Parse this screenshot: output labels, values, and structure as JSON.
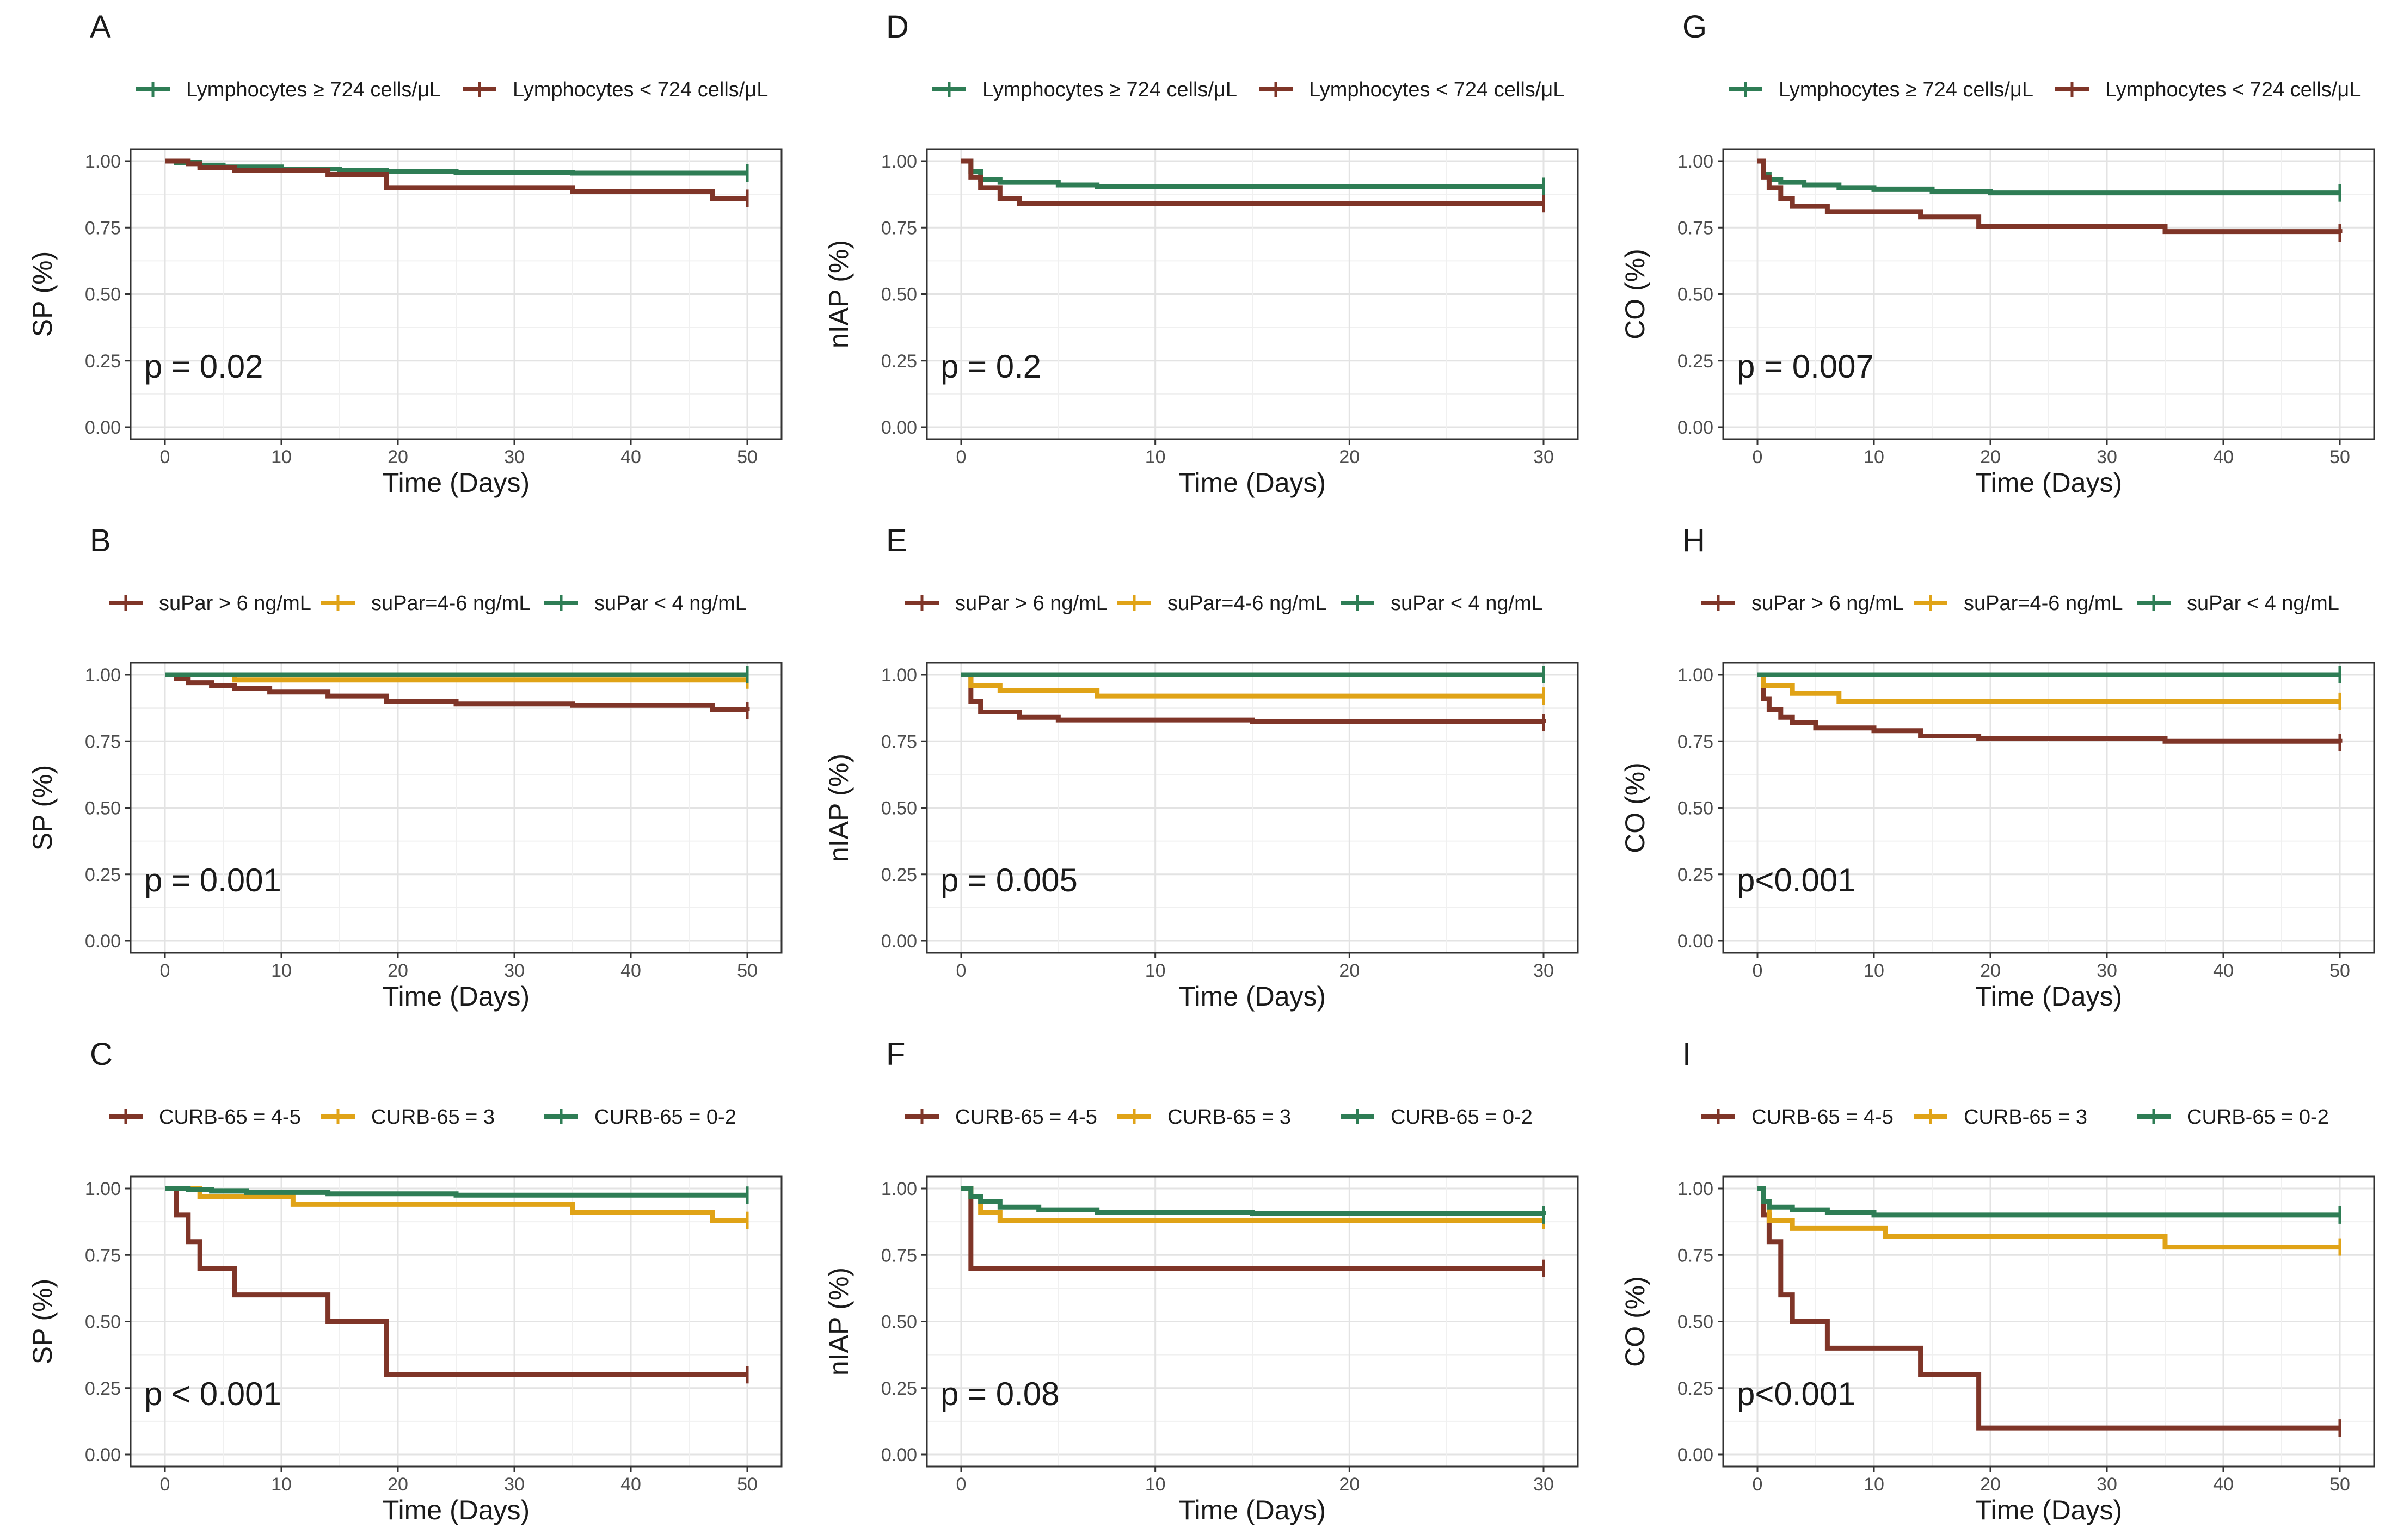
{
  "figure": {
    "colors": {
      "green": "#2e7d55",
      "brown": "#7f3528",
      "gold": "#e0a317"
    }
  },
  "chart_data": [
    {
      "id": "A",
      "type": "line",
      "subtype": "kaplan-meier",
      "xlabel": "Time (Days)",
      "ylabel": "SP (%)",
      "xlim": [
        0,
        50
      ],
      "ylim": [
        0,
        1
      ],
      "xticks": [
        "0",
        "10",
        "20",
        "30",
        "40",
        "50"
      ],
      "yticks": [
        "0.00",
        "0.25",
        "0.50",
        "0.75",
        "1.00"
      ],
      "pvalue": "p = 0.02",
      "legend": [
        {
          "label": "Lymphocytes ≥ 724 cells/μL",
          "color": "#2e7d55"
        },
        {
          "label": "Lymphocytes < 724 cells/μL",
          "color": "#7f3528"
        }
      ],
      "series": [
        {
          "name": "Lymphocytes ≥ 724 cells/μL",
          "color": "#2e7d55",
          "x": [
            0,
            1,
            3,
            5,
            10,
            15,
            19,
            25,
            35,
            50
          ],
          "y": [
            1,
            0.995,
            0.985,
            0.978,
            0.97,
            0.965,
            0.962,
            0.958,
            0.955,
            0.955
          ]
        },
        {
          "name": "Lymphocytes < 724 cells/μL",
          "color": "#7f3528",
          "x": [
            0,
            2,
            3,
            6,
            14,
            19,
            35,
            47,
            50
          ],
          "y": [
            1,
            0.99,
            0.975,
            0.965,
            0.95,
            0.9,
            0.885,
            0.86,
            0.86
          ]
        }
      ]
    },
    {
      "id": "B",
      "type": "line",
      "subtype": "kaplan-meier",
      "xlabel": "Time (Days)",
      "ylabel": "SP (%)",
      "xlim": [
        0,
        50
      ],
      "ylim": [
        0,
        1
      ],
      "xticks": [
        "0",
        "10",
        "20",
        "30",
        "40",
        "50"
      ],
      "yticks": [
        "0.00",
        "0.25",
        "0.50",
        "0.75",
        "1.00"
      ],
      "pvalue": "p = 0.001",
      "legend": [
        {
          "label": "suPar > 6 ng/mL",
          "color": "#7f3528"
        },
        {
          "label": "suPar=4-6 ng/mL",
          "color": "#e0a317"
        },
        {
          "label": "suPar < 4 ng/mL",
          "color": "#2e7d55"
        }
      ],
      "series": [
        {
          "name": "suPar > 6 ng/mL",
          "color": "#7f3528",
          "x": [
            0,
            1,
            2,
            4,
            6,
            9,
            14,
            19,
            25,
            35,
            47,
            50
          ],
          "y": [
            1,
            0.985,
            0.97,
            0.96,
            0.95,
            0.935,
            0.92,
            0.9,
            0.89,
            0.885,
            0.87,
            0.865
          ]
        },
        {
          "name": "suPar=4-6 ng/mL",
          "color": "#e0a317",
          "x": [
            0,
            6,
            50
          ],
          "y": [
            1,
            0.98,
            0.98
          ]
        },
        {
          "name": "suPar < 4 ng/mL",
          "color": "#2e7d55",
          "x": [
            0,
            50
          ],
          "y": [
            1,
            1
          ]
        }
      ]
    },
    {
      "id": "C",
      "type": "line",
      "subtype": "kaplan-meier",
      "xlabel": "Time (Days)",
      "ylabel": "SP (%)",
      "xlim": [
        0,
        50
      ],
      "ylim": [
        0,
        1
      ],
      "xticks": [
        "0",
        "10",
        "20",
        "30",
        "40",
        "50"
      ],
      "yticks": [
        "0.00",
        "0.25",
        "0.50",
        "0.75",
        "1.00"
      ],
      "pvalue": "p < 0.001",
      "legend": [
        {
          "label": "CURB-65 = 4-5",
          "color": "#7f3528"
        },
        {
          "label": "CURB-65 = 3",
          "color": "#e0a317"
        },
        {
          "label": "CURB-65 = 0-2",
          "color": "#2e7d55"
        }
      ],
      "series": [
        {
          "name": "CURB-65 = 4-5",
          "color": "#7f3528",
          "x": [
            0,
            1,
            2,
            3,
            6,
            14,
            19,
            50
          ],
          "y": [
            1,
            0.9,
            0.8,
            0.7,
            0.6,
            0.5,
            0.3,
            0.3
          ]
        },
        {
          "name": "CURB-65 = 3",
          "color": "#e0a317",
          "x": [
            0,
            3,
            11,
            35,
            47,
            50
          ],
          "y": [
            1,
            0.97,
            0.94,
            0.91,
            0.88,
            0.88
          ]
        },
        {
          "name": "CURB-65 = 0-2",
          "color": "#2e7d55",
          "x": [
            0,
            2,
            4,
            7,
            14,
            25,
            50
          ],
          "y": [
            1,
            0.995,
            0.99,
            0.985,
            0.98,
            0.975,
            0.975
          ]
        }
      ]
    },
    {
      "id": "D",
      "type": "line",
      "subtype": "kaplan-meier",
      "xlabel": "Time (Days)",
      "ylabel": "nIAP (%)",
      "xlim": [
        0,
        30
      ],
      "ylim": [
        0,
        1
      ],
      "xticks": [
        "0",
        "10",
        "20",
        "30"
      ],
      "yticks": [
        "0.00",
        "0.25",
        "0.50",
        "0.75",
        "1.00"
      ],
      "pvalue": "p = 0.2",
      "legend": [
        {
          "label": "Lymphocytes ≥ 724 cells/μL",
          "color": "#2e7d55"
        },
        {
          "label": "Lymphocytes < 724 cells/μL",
          "color": "#7f3528"
        }
      ],
      "series": [
        {
          "name": "Lymphocytes ≥ 724 cells/μL",
          "color": "#2e7d55",
          "x": [
            0,
            0.5,
            1,
            2,
            5,
            7,
            30
          ],
          "y": [
            1,
            0.96,
            0.93,
            0.92,
            0.91,
            0.905,
            0.905
          ]
        },
        {
          "name": "Lymphocytes < 724 cells/μL",
          "color": "#7f3528",
          "x": [
            0,
            0.5,
            1,
            2,
            3,
            30
          ],
          "y": [
            1,
            0.94,
            0.9,
            0.86,
            0.84,
            0.84
          ]
        }
      ]
    },
    {
      "id": "E",
      "type": "line",
      "subtype": "kaplan-meier",
      "xlabel": "Time (Days)",
      "ylabel": "nIAP (%)",
      "xlim": [
        0,
        30
      ],
      "ylim": [
        0,
        1
      ],
      "xticks": [
        "0",
        "10",
        "20",
        "30"
      ],
      "yticks": [
        "0.00",
        "0.25",
        "0.50",
        "0.75",
        "1.00"
      ],
      "pvalue": "p = 0.005",
      "legend": [
        {
          "label": "suPar > 6 ng/mL",
          "color": "#7f3528"
        },
        {
          "label": "suPar=4-6 ng/mL",
          "color": "#e0a317"
        },
        {
          "label": "suPar < 4 ng/mL",
          "color": "#2e7d55"
        }
      ],
      "series": [
        {
          "name": "suPar > 6 ng/mL",
          "color": "#7f3528",
          "x": [
            0,
            0.5,
            1,
            3,
            5,
            15,
            30
          ],
          "y": [
            1,
            0.9,
            0.86,
            0.84,
            0.83,
            0.825,
            0.82
          ]
        },
        {
          "name": "suPar=4-6 ng/mL",
          "color": "#e0a317",
          "x": [
            0,
            0.5,
            2,
            7,
            30
          ],
          "y": [
            1,
            0.96,
            0.94,
            0.92,
            0.92
          ]
        },
        {
          "name": "suPar < 4 ng/mL",
          "color": "#2e7d55",
          "x": [
            0,
            30
          ],
          "y": [
            1,
            1
          ]
        }
      ]
    },
    {
      "id": "F",
      "type": "line",
      "subtype": "kaplan-meier",
      "xlabel": "Time (Days)",
      "ylabel": "nIAP (%)",
      "xlim": [
        0,
        30
      ],
      "ylim": [
        0,
        1
      ],
      "xticks": [
        "0",
        "10",
        "20",
        "30"
      ],
      "yticks": [
        "0.00",
        "0.25",
        "0.50",
        "0.75",
        "1.00"
      ],
      "pvalue": "p = 0.08",
      "legend": [
        {
          "label": "CURB-65 = 4-5",
          "color": "#7f3528"
        },
        {
          "label": "CURB-65 = 3",
          "color": "#e0a317"
        },
        {
          "label": "CURB-65 = 0-2",
          "color": "#2e7d55"
        }
      ],
      "series": [
        {
          "name": "CURB-65 = 4-5",
          "color": "#7f3528",
          "x": [
            0,
            0.5,
            30
          ],
          "y": [
            1,
            0.7,
            0.7
          ]
        },
        {
          "name": "CURB-65 = 3",
          "color": "#e0a317",
          "x": [
            0,
            0.5,
            1,
            2,
            30
          ],
          "y": [
            1,
            0.97,
            0.91,
            0.88,
            0.88
          ]
        },
        {
          "name": "CURB-65 = 0-2",
          "color": "#2e7d55",
          "x": [
            0,
            0.5,
            1,
            2,
            4,
            7,
            15,
            30
          ],
          "y": [
            1,
            0.97,
            0.95,
            0.93,
            0.92,
            0.91,
            0.905,
            0.9
          ]
        }
      ]
    },
    {
      "id": "G",
      "type": "line",
      "subtype": "kaplan-meier",
      "xlabel": "Time (Days)",
      "ylabel": "CO (%)",
      "xlim": [
        0,
        50
      ],
      "ylim": [
        0,
        1
      ],
      "xticks": [
        "0",
        "10",
        "20",
        "30",
        "40",
        "50"
      ],
      "yticks": [
        "0.00",
        "0.25",
        "0.50",
        "0.75",
        "1.00"
      ],
      "pvalue": "p = 0.007",
      "legend": [
        {
          "label": "Lymphocytes ≥ 724 cells/μL",
          "color": "#2e7d55"
        },
        {
          "label": "Lymphocytes < 724 cells/μL",
          "color": "#7f3528"
        }
      ],
      "series": [
        {
          "name": "Lymphocytes ≥ 724 cells/μL",
          "color": "#2e7d55",
          "x": [
            0,
            0.5,
            1,
            2,
            4,
            7,
            10,
            15,
            20,
            50
          ],
          "y": [
            1,
            0.95,
            0.93,
            0.92,
            0.91,
            0.9,
            0.895,
            0.885,
            0.88,
            0.88
          ]
        },
        {
          "name": "Lymphocytes < 724 cells/μL",
          "color": "#7f3528",
          "x": [
            0,
            0.5,
            1,
            2,
            3,
            6,
            14,
            19,
            35,
            50
          ],
          "y": [
            1,
            0.94,
            0.9,
            0.86,
            0.83,
            0.81,
            0.79,
            0.755,
            0.735,
            0.73
          ]
        }
      ]
    },
    {
      "id": "H",
      "type": "line",
      "subtype": "kaplan-meier",
      "xlabel": "Time (Days)",
      "ylabel": "CO (%)",
      "xlim": [
        0,
        50
      ],
      "ylim": [
        0,
        1
      ],
      "xticks": [
        "0",
        "10",
        "20",
        "30",
        "40",
        "50"
      ],
      "yticks": [
        "0.00",
        "0.25",
        "0.50",
        "0.75",
        "1.00"
      ],
      "pvalue": "p<0.001",
      "legend": [
        {
          "label": "suPar > 6 ng/mL",
          "color": "#7f3528"
        },
        {
          "label": "suPar=4-6 ng/mL",
          "color": "#e0a317"
        },
        {
          "label": "suPar < 4 ng/mL",
          "color": "#2e7d55"
        }
      ],
      "series": [
        {
          "name": "suPar > 6 ng/mL",
          "color": "#7f3528",
          "x": [
            0,
            0.5,
            1,
            2,
            3,
            5,
            10,
            14,
            19,
            35,
            50
          ],
          "y": [
            1,
            0.91,
            0.87,
            0.84,
            0.82,
            0.8,
            0.79,
            0.77,
            0.76,
            0.75,
            0.745
          ]
        },
        {
          "name": "suPar=4-6 ng/mL",
          "color": "#e0a317",
          "x": [
            0,
            0.5,
            3,
            7,
            50
          ],
          "y": [
            1,
            0.96,
            0.93,
            0.9,
            0.9
          ]
        },
        {
          "name": "suPar < 4 ng/mL",
          "color": "#2e7d55",
          "x": [
            0,
            50
          ],
          "y": [
            1,
            1
          ]
        }
      ]
    },
    {
      "id": "I",
      "type": "line",
      "subtype": "kaplan-meier",
      "xlabel": "Time (Days)",
      "ylabel": "CO (%)",
      "xlim": [
        0,
        50
      ],
      "ylim": [
        0,
        1
      ],
      "xticks": [
        "0",
        "10",
        "20",
        "30",
        "40",
        "50"
      ],
      "yticks": [
        "0.00",
        "0.25",
        "0.50",
        "0.75",
        "1.00"
      ],
      "pvalue": "p<0.001",
      "legend": [
        {
          "label": "CURB-65 = 4-5",
          "color": "#7f3528"
        },
        {
          "label": "CURB-65 = 3",
          "color": "#e0a317"
        },
        {
          "label": "CURB-65 = 0-2",
          "color": "#2e7d55"
        }
      ],
      "series": [
        {
          "name": "CURB-65 = 4-5",
          "color": "#7f3528",
          "x": [
            0,
            0.5,
            1,
            2,
            3,
            6,
            14,
            19,
            50
          ],
          "y": [
            1,
            0.9,
            0.8,
            0.6,
            0.5,
            0.4,
            0.3,
            0.1,
            0.1
          ]
        },
        {
          "name": "CURB-65 = 3",
          "color": "#e0a317",
          "x": [
            0,
            0.5,
            1,
            3,
            11,
            35,
            50
          ],
          "y": [
            1,
            0.95,
            0.88,
            0.85,
            0.82,
            0.78,
            0.78
          ]
        },
        {
          "name": "CURB-65 = 0-2",
          "color": "#2e7d55",
          "x": [
            0,
            0.5,
            1,
            3,
            6,
            10,
            50
          ],
          "y": [
            1,
            0.95,
            0.93,
            0.92,
            0.91,
            0.9,
            0.9
          ]
        }
      ]
    }
  ]
}
